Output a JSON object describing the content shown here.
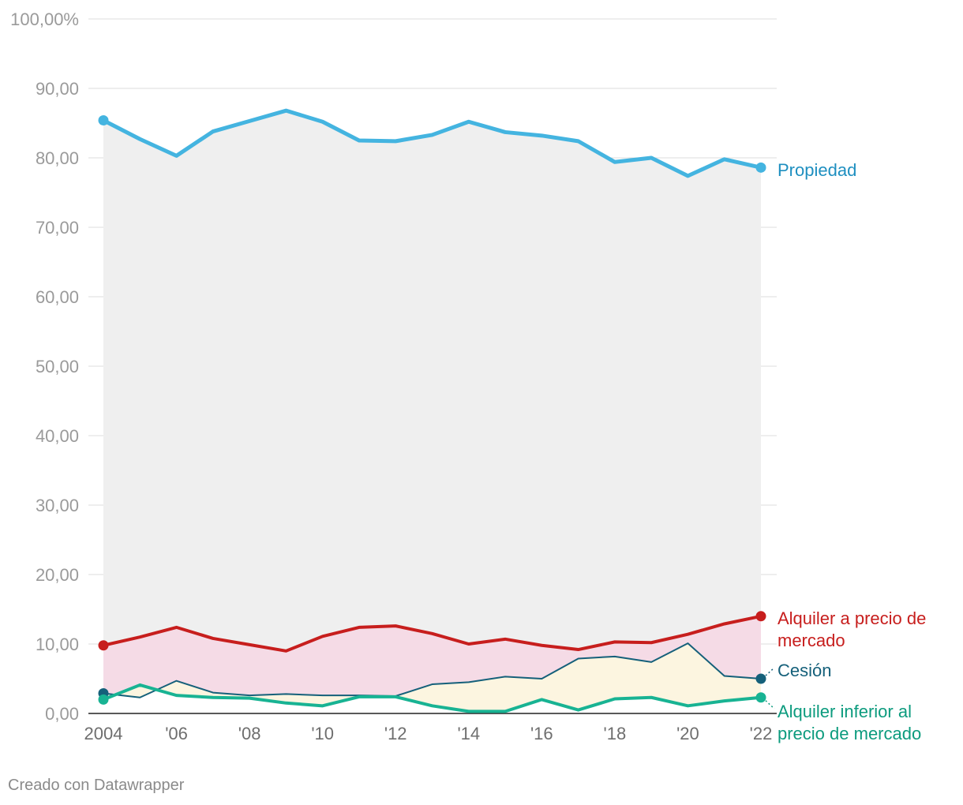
{
  "chart_data": {
    "type": "line",
    "title": "",
    "xlabel": "",
    "ylabel": "",
    "ylim": [
      0,
      100
    ],
    "y_ticks": [
      "0,00",
      "10,00",
      "20,00",
      "30,00",
      "40,00",
      "50,00",
      "60,00",
      "70,00",
      "80,00",
      "90,00",
      "100,00%"
    ],
    "y_tick_values": [
      0,
      10,
      20,
      30,
      40,
      50,
      60,
      70,
      80,
      90,
      100
    ],
    "x": [
      2004,
      2005,
      2006,
      2007,
      2008,
      2009,
      2010,
      2011,
      2012,
      2013,
      2014,
      2015,
      2016,
      2017,
      2018,
      2019,
      2020,
      2021,
      2022
    ],
    "x_ticks": [
      "2004",
      "'06",
      "'08",
      "'10",
      "'12",
      "'14",
      "'16",
      "'18",
      "'20",
      "'22"
    ],
    "x_tick_values": [
      2004,
      2006,
      2008,
      2010,
      2012,
      2014,
      2016,
      2018,
      2020,
      2022
    ],
    "grid": true,
    "series": [
      {
        "name": "Propiedad",
        "color": "#44b4e0",
        "label_color": "#1e8fc0",
        "values": [
          85.4,
          82.7,
          80.3,
          83.8,
          85.3,
          86.8,
          85.2,
          82.5,
          82.4,
          83.3,
          85.2,
          83.7,
          83.2,
          82.4,
          79.4,
          80.0,
          77.4,
          79.8,
          78.6
        ]
      },
      {
        "name": "Alquiler a precio de mercado",
        "color": "#c71e1d",
        "label_color": "#c71e1d",
        "values": [
          9.8,
          11.0,
          12.4,
          10.8,
          9.9,
          9.0,
          11.1,
          12.4,
          12.6,
          11.5,
          10.0,
          10.7,
          9.8,
          9.2,
          10.3,
          10.2,
          11.4,
          12.9,
          14.0
        ]
      },
      {
        "name": "Cesión",
        "color": "#15607a",
        "label_color": "#15607a",
        "values": [
          2.9,
          2.3,
          4.7,
          3.0,
          2.6,
          2.8,
          2.6,
          2.6,
          2.5,
          4.2,
          4.5,
          5.3,
          5.0,
          7.9,
          8.2,
          7.4,
          10.1,
          5.4,
          5.0
        ]
      },
      {
        "name": "Alquiler inferior al precio de mercado",
        "color": "#18b393",
        "label_color": "#0c9b7e",
        "values": [
          2.0,
          4.1,
          2.6,
          2.3,
          2.2,
          1.5,
          1.1,
          2.4,
          2.4,
          1.1,
          0.3,
          0.3,
          2.0,
          0.5,
          2.1,
          2.3,
          1.1,
          1.8,
          2.3
        ]
      }
    ],
    "labels": {
      "propiedad": "Propiedad",
      "alquiler_mercado_1": "Alquiler a precio de",
      "alquiler_mercado_2": "mercado",
      "cesion": "Cesión",
      "alquiler_inferior_1": "Alquiler inferior al",
      "alquiler_inferior_2": "precio de mercado"
    },
    "area_colors": {
      "propiedad": "#efefef",
      "alquiler_mercado": "#f5dbe6",
      "cesion": "#fcf5e0"
    }
  },
  "footer": {
    "credit": "Creado con Datawrapper"
  }
}
